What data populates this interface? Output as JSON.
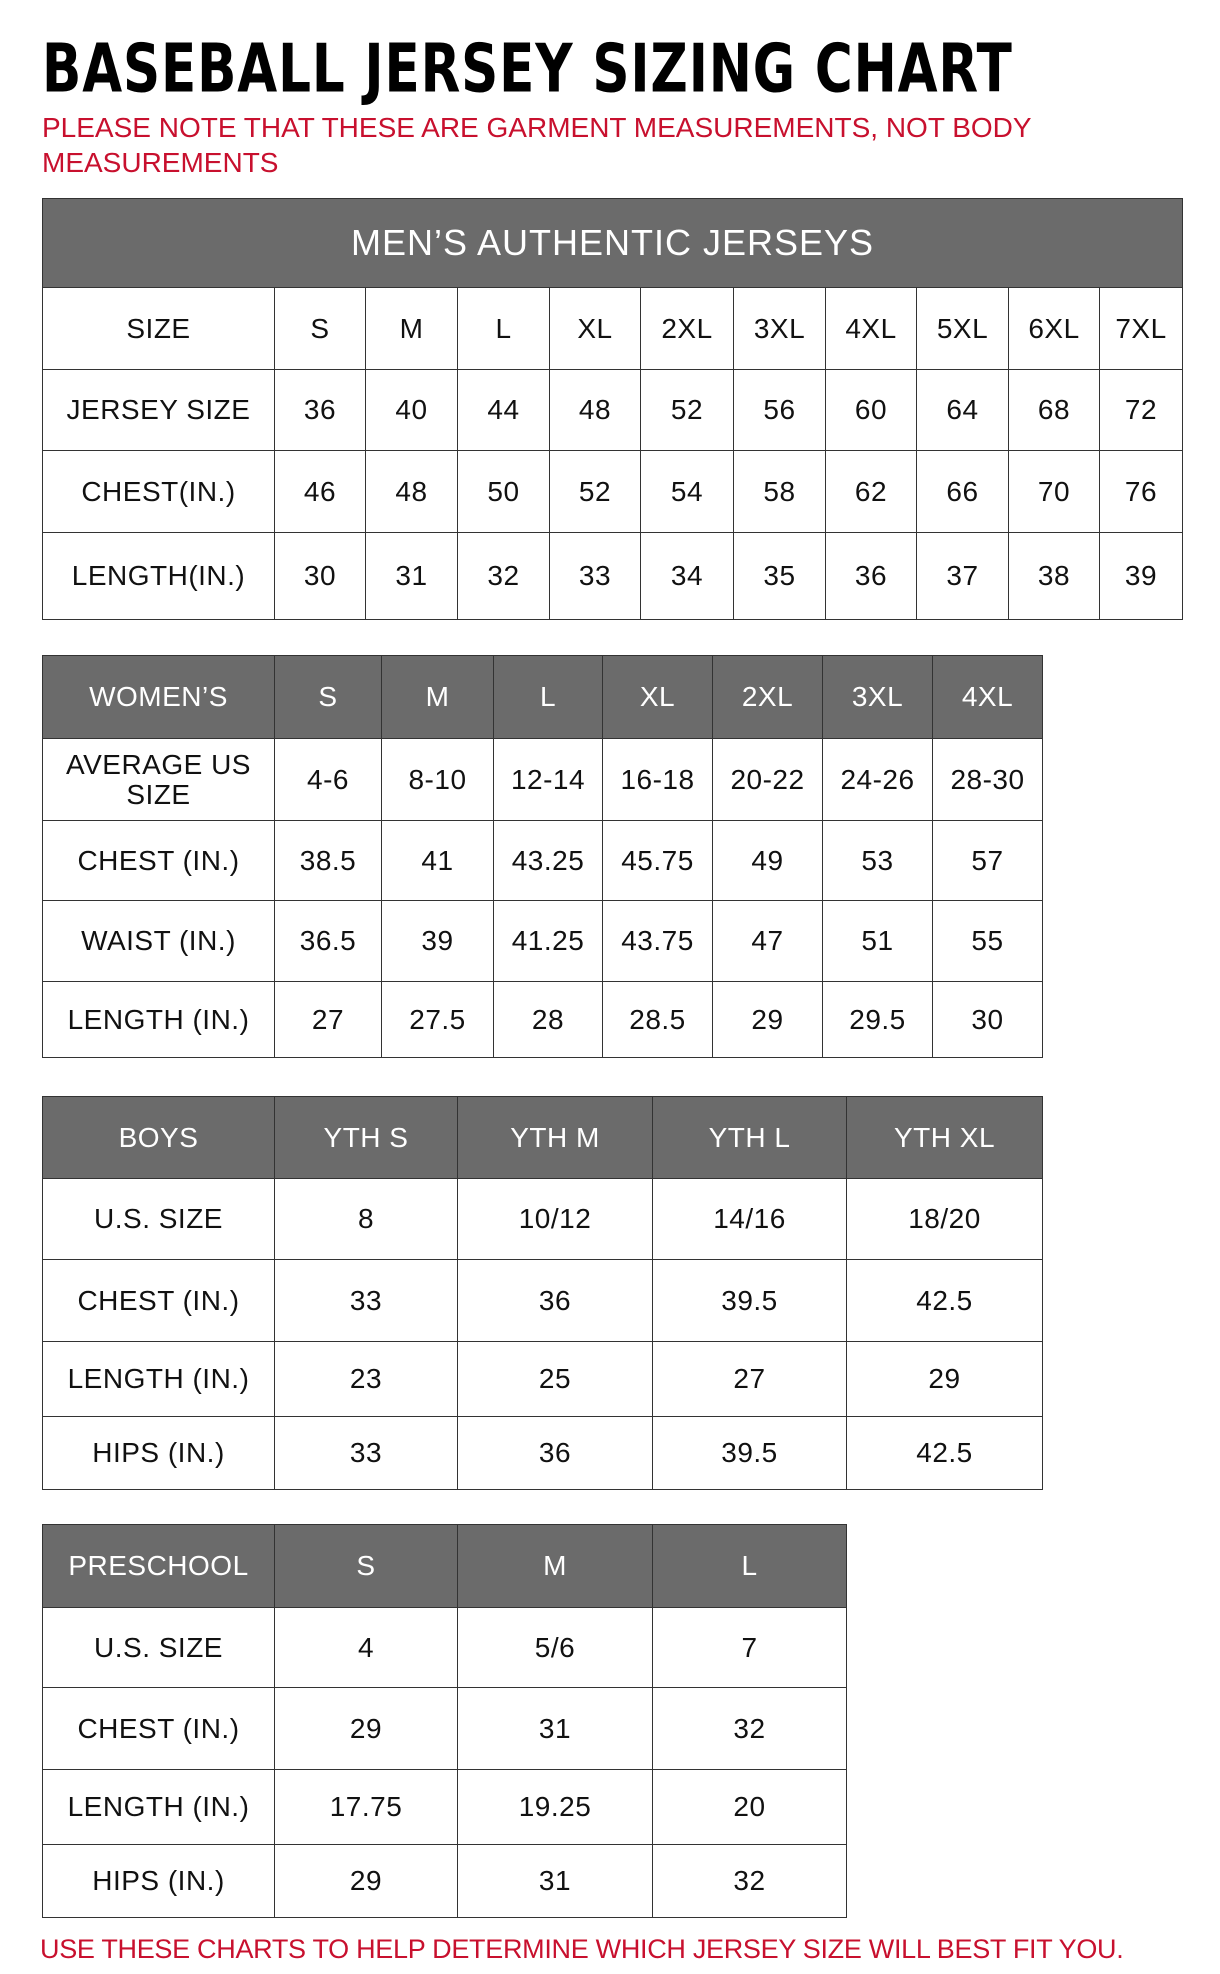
{
  "title": "BASEBALL JERSEY SIZING CHART",
  "note": "PLEASE NOTE THAT THESE ARE GARMENT MEASUREMENTS, NOT BODY MEASUREMENTS",
  "footer": "USE THESE CHARTS TO HELP DETERMINE WHICH JERSEY SIZE WILL BEST FIT YOU.",
  "colors": {
    "header_bg": "#6b6b6b",
    "header_text": "#ffffff",
    "note_red": "#c8102e"
  },
  "tables": [
    {
      "banner": "MEN’S AUTHENTIC JERSEYS",
      "header_row": false,
      "rows": [
        [
          "SIZE",
          "S",
          "M",
          "L",
          "XL",
          "2XL",
          "3XL",
          "4XL",
          "5XL",
          "6XL",
          "7XL"
        ],
        [
          "JERSEY SIZE",
          "36",
          "40",
          "44",
          "48",
          "52",
          "56",
          "60",
          "64",
          "68",
          "72"
        ],
        [
          "CHEST(IN.)",
          "46",
          "48",
          "50",
          "52",
          "54",
          "58",
          "62",
          "66",
          "70",
          "76"
        ],
        [
          "LENGTH(IN.)",
          "30",
          "31",
          "32",
          "33",
          "34",
          "35",
          "36",
          "37",
          "38",
          "39"
        ]
      ]
    },
    {
      "header_row": true,
      "rows": [
        [
          "WOMEN’S",
          "S",
          "M",
          "L",
          "XL",
          "2XL",
          "3XL",
          "4XL"
        ],
        [
          "AVERAGE US SIZE",
          "4-6",
          "8-10",
          "12-14",
          "16-18",
          "20-22",
          "24-26",
          "28-30"
        ],
        [
          "CHEST (IN.)",
          "38.5",
          "41",
          "43.25",
          "45.75",
          "49",
          "53",
          "57"
        ],
        [
          "WAIST (IN.)",
          "36.5",
          "39",
          "41.25",
          "43.75",
          "47",
          "51",
          "55"
        ],
        [
          "LENGTH (IN.)",
          "27",
          "27.5",
          "28",
          "28.5",
          "29",
          "29.5",
          "30"
        ]
      ]
    },
    {
      "header_row": true,
      "rows": [
        [
          "BOYS",
          "YTH S",
          "YTH M",
          "YTH L",
          "YTH XL"
        ],
        [
          "U.S. SIZE",
          "8",
          "10/12",
          "14/16",
          "18/20"
        ],
        [
          "CHEST (IN.)",
          "33",
          "36",
          "39.5",
          "42.5"
        ],
        [
          "LENGTH (IN.)",
          "23",
          "25",
          "27",
          "29"
        ],
        [
          "HIPS (IN.)",
          "33",
          "36",
          "39.5",
          "42.5"
        ]
      ]
    },
    {
      "header_row": true,
      "rows": [
        [
          "PRESCHOOL",
          "S",
          "M",
          "L"
        ],
        [
          "U.S. SIZE",
          "4",
          "5/6",
          "7"
        ],
        [
          "CHEST (IN.)",
          "29",
          "31",
          "32"
        ],
        [
          "LENGTH (IN.)",
          "17.75",
          "19.25",
          "20"
        ],
        [
          "HIPS (IN.)",
          "29",
          "31",
          "32"
        ]
      ]
    }
  ]
}
